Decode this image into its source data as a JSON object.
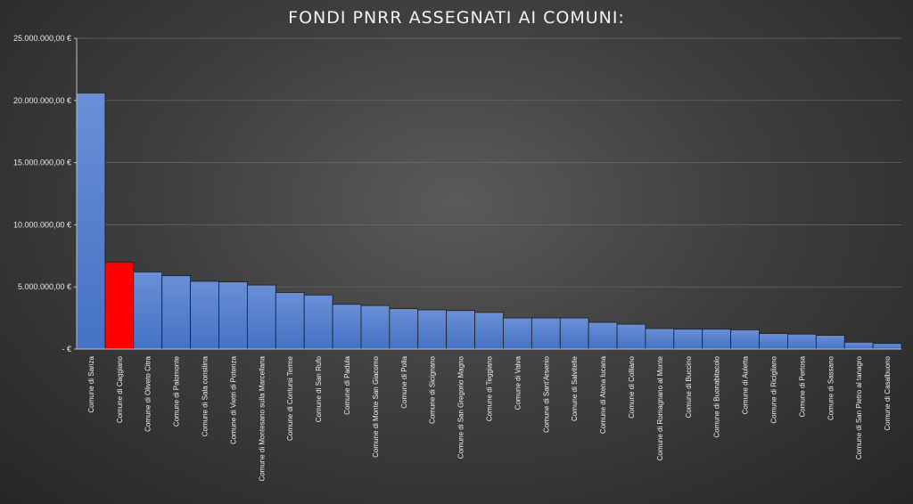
{
  "chart_data": {
    "type": "bar",
    "title": "FONDI PNRR ASSEGNATI AI COMUNI:",
    "xlabel": "",
    "ylabel": "",
    "ylim": [
      0,
      25000000
    ],
    "yticks": [
      0,
      5000000,
      10000000,
      15000000,
      20000000,
      25000000
    ],
    "ytick_labels": [
      "-   €",
      "5.000.000,00 €",
      "10.000.000,00 €",
      "15.000.000,00 €",
      "20.000.000,00 €",
      "25.000.000,00 €"
    ],
    "grid": true,
    "legend": "none",
    "bar_color": "#4472c4",
    "highlight_color": "#ff0000",
    "highlight_category": "Comune di Caggiano",
    "categories": [
      "Comune di Sanza",
      "Comune di Caggiano",
      "Comune di Oliveto Citra",
      "Comune di Palomonte",
      "Comune di Sala consilina",
      "Comune di Vietri di Potenza",
      "Comune di Montesano sulla Marcellana",
      "Comune di Contursi Terme",
      "Comune di San Rufo",
      "Comune di Padula",
      "Comune di Monte San Giacomo",
      "Comune di Polla",
      "Comune di Sicignano",
      "Comune di San Gregorio Magno",
      "Comune di Teggiano",
      "Comune di Valva",
      "Comune di Sant'Arsenio",
      "Comune di Salvitelle",
      "Comune di Atena lucana",
      "Comune di Colliano",
      "Comune di Romagnano al Monte",
      "Comune di Buccino",
      "Comune di Buonabitacolo",
      "Comune di Auletta",
      "Comune di Ricigliano",
      "Comune di Pertosa",
      "Comune di Sassano",
      "Comune di San Pietro al tanagro",
      "Comune di Casalbuono"
    ],
    "values": [
      20600000,
      7000000,
      6200000,
      5900000,
      5450000,
      5400000,
      5150000,
      4550000,
      4350000,
      3600000,
      3500000,
      3250000,
      3150000,
      3100000,
      2950000,
      2500000,
      2500000,
      2500000,
      2150000,
      2000000,
      1650000,
      1600000,
      1600000,
      1550000,
      1250000,
      1200000,
      1100000,
      550000,
      450000
    ]
  }
}
